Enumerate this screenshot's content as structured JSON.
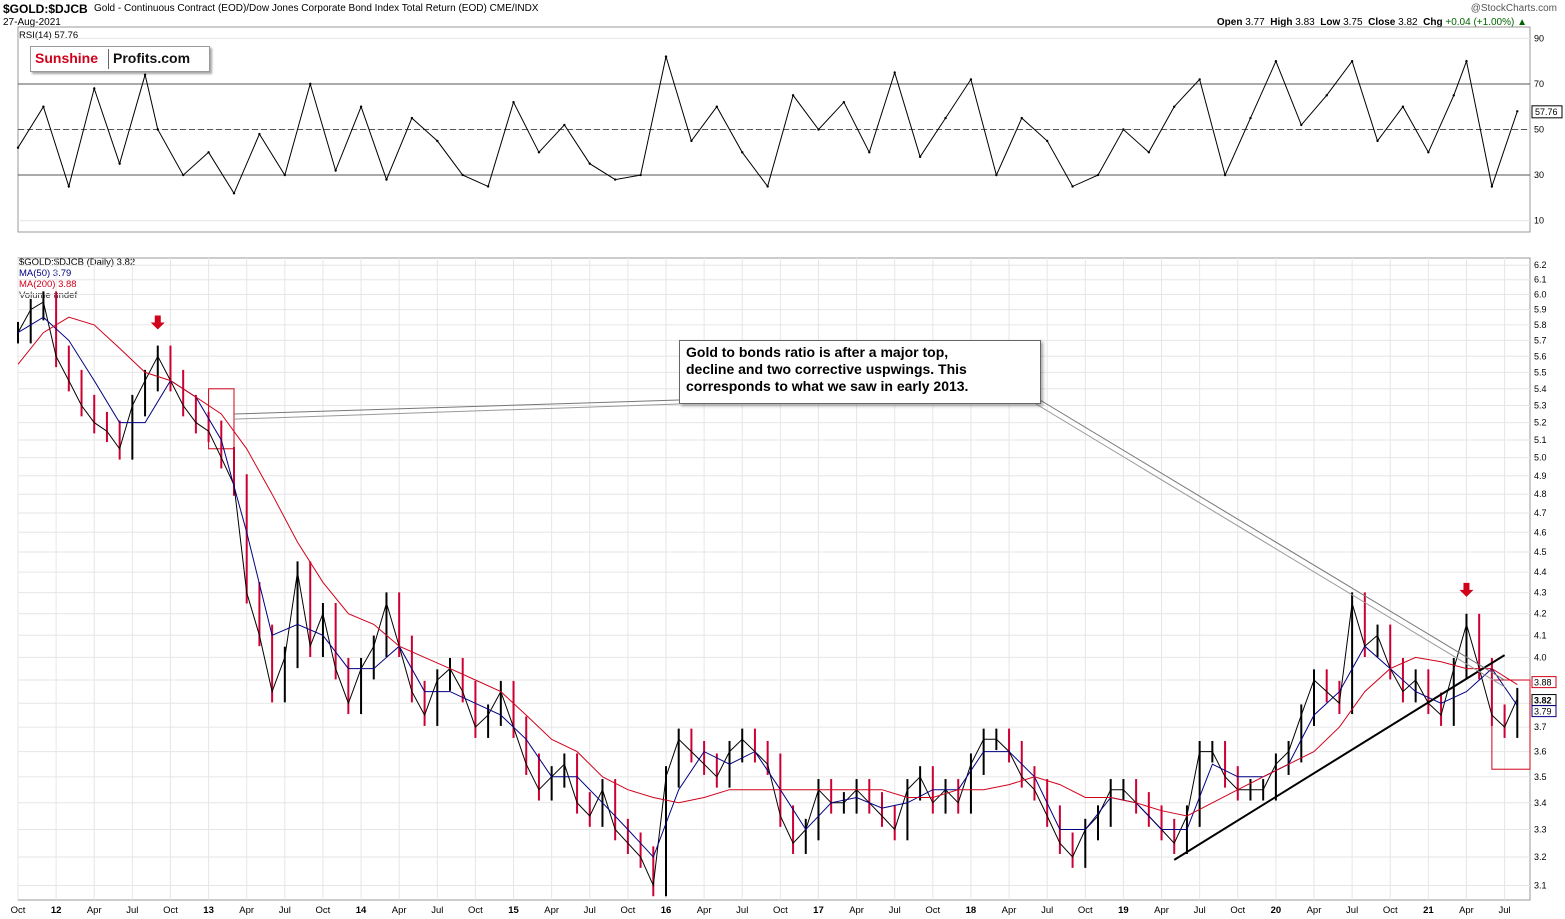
{
  "header": {
    "symbol": "$GOLD:$DJCB",
    "description": "Gold - Continuous Contract (EOD)/Dow Jones Corporate Bond Index Total Return (EOD)",
    "exchange": "CME/INDX",
    "date": "27-Aug-2021",
    "credit": "@StockCharts.com",
    "open_label": "Open",
    "open": "3.77",
    "high_label": "High",
    "high": "3.83",
    "low_label": "Low",
    "low": "3.75",
    "close_label": "Close",
    "close": "3.82",
    "chg_label": "Chg",
    "chg": "+0.04 (+1.00%)",
    "chg_arrow": "▲"
  },
  "logo": {
    "part1": "Sunshine",
    "part2": "Profits.com"
  },
  "annotation": {
    "lines": [
      "Gold to bonds ratio is after a major top,",
      "decline and two corrective uspwings. This",
      "corresponds to what we saw in early 2013."
    ]
  },
  "colors": {
    "price": "#000000",
    "down_bars": "#cc0033",
    "ma50": "#000080",
    "ma200": "#d0021b",
    "markers": "#d0021b",
    "grid": "#e6e6e6"
  },
  "chart_data": [
    {
      "type": "line",
      "panel": "RSI",
      "legend": "RSI(14) 57.76",
      "current_value": "57.76",
      "y_ticks": [
        10,
        30,
        50,
        70,
        90
      ],
      "ylim": [
        5,
        95
      ],
      "reference_lines": [
        30,
        50,
        70
      ],
      "x": [
        "2011-10",
        "2011-12",
        "2012-02",
        "2012-04",
        "2012-06",
        "2012-08",
        "2012-09",
        "2012-11",
        "2013-01",
        "2013-03",
        "2013-05",
        "2013-07",
        "2013-09",
        "2013-11",
        "2014-01",
        "2014-03",
        "2014-05",
        "2014-07",
        "2014-09",
        "2014-11",
        "2015-01",
        "2015-03",
        "2015-05",
        "2015-07",
        "2015-09",
        "2015-11",
        "2016-01",
        "2016-03",
        "2016-05",
        "2016-07",
        "2016-09",
        "2016-11",
        "2017-01",
        "2017-03",
        "2017-05",
        "2017-07",
        "2017-09",
        "2017-11",
        "2018-01",
        "2018-03",
        "2018-05",
        "2018-07",
        "2018-09",
        "2018-11",
        "2019-01",
        "2019-03",
        "2019-05",
        "2019-07",
        "2019-09",
        "2019-11",
        "2020-01",
        "2020-03",
        "2020-05",
        "2020-07",
        "2020-09",
        "2020-11",
        "2021-01",
        "2021-03",
        "2021-04",
        "2021-06",
        "2021-08"
      ],
      "values": [
        42,
        60,
        25,
        68,
        35,
        74,
        50,
        30,
        40,
        22,
        48,
        30,
        70,
        32,
        60,
        28,
        55,
        45,
        30,
        25,
        62,
        40,
        52,
        35,
        28,
        30,
        82,
        45,
        60,
        40,
        25,
        65,
        50,
        62,
        40,
        75,
        38,
        55,
        72,
        30,
        55,
        45,
        25,
        30,
        50,
        40,
        60,
        72,
        30,
        55,
        80,
        52,
        65,
        80,
        45,
        60,
        40,
        65,
        80,
        25,
        58
      ]
    },
    {
      "type": "line",
      "panel": "Price",
      "legend_title": "$GOLD:$DJCB (Daily) 3.82",
      "series": [
        {
          "name": "$GOLD:$DJCB",
          "x": [
            "2011-10",
            "2011-11",
            "2011-12",
            "2012-01",
            "2012-02",
            "2012-03",
            "2012-04",
            "2012-05",
            "2012-06",
            "2012-07",
            "2012-08",
            "2012-09",
            "2012-10",
            "2012-11",
            "2012-12",
            "2013-01",
            "2013-02",
            "2013-03",
            "2013-04",
            "2013-05",
            "2013-06",
            "2013-07",
            "2013-08",
            "2013-09",
            "2013-10",
            "2013-11",
            "2013-12",
            "2014-01",
            "2014-02",
            "2014-03",
            "2014-04",
            "2014-05",
            "2014-06",
            "2014-07",
            "2014-08",
            "2014-09",
            "2014-10",
            "2014-11",
            "2014-12",
            "2015-01",
            "2015-02",
            "2015-03",
            "2015-04",
            "2015-05",
            "2015-06",
            "2015-07",
            "2015-08",
            "2015-09",
            "2015-10",
            "2015-11",
            "2015-12",
            "2016-01",
            "2016-02",
            "2016-03",
            "2016-04",
            "2016-05",
            "2016-06",
            "2016-07",
            "2016-08",
            "2016-09",
            "2016-10",
            "2016-11",
            "2016-12",
            "2017-01",
            "2017-02",
            "2017-03",
            "2017-04",
            "2017-05",
            "2017-06",
            "2017-07",
            "2017-08",
            "2017-09",
            "2017-10",
            "2017-11",
            "2017-12",
            "2018-01",
            "2018-02",
            "2018-03",
            "2018-04",
            "2018-05",
            "2018-06",
            "2018-07",
            "2018-08",
            "2018-09",
            "2018-10",
            "2018-11",
            "2018-12",
            "2019-01",
            "2019-02",
            "2019-03",
            "2019-04",
            "2019-05",
            "2019-06",
            "2019-07",
            "2019-08",
            "2019-09",
            "2019-10",
            "2019-11",
            "2019-12",
            "2020-01",
            "2020-02",
            "2020-03",
            "2020-04",
            "2020-05",
            "2020-06",
            "2020-07",
            "2020-08",
            "2020-09",
            "2020-10",
            "2020-11",
            "2020-12",
            "2021-01",
            "2021-02",
            "2021-03",
            "2021-04",
            "2021-05",
            "2021-06",
            "2021-07",
            "2021-08"
          ],
          "values": [
            5.75,
            5.9,
            5.95,
            5.6,
            5.45,
            5.3,
            5.2,
            5.15,
            5.05,
            5.3,
            5.45,
            5.6,
            5.45,
            5.3,
            5.2,
            5.15,
            5.0,
            4.85,
            4.3,
            4.1,
            3.85,
            4.0,
            4.4,
            4.05,
            4.2,
            3.95,
            3.8,
            3.95,
            4.05,
            4.25,
            4.05,
            3.85,
            3.75,
            3.9,
            3.95,
            3.85,
            3.7,
            3.75,
            3.85,
            3.7,
            3.55,
            3.45,
            3.5,
            3.55,
            3.4,
            3.35,
            3.45,
            3.3,
            3.25,
            3.2,
            3.1,
            3.5,
            3.65,
            3.6,
            3.55,
            3.5,
            3.6,
            3.65,
            3.6,
            3.55,
            3.35,
            3.25,
            3.3,
            3.45,
            3.4,
            3.4,
            3.45,
            3.4,
            3.35,
            3.3,
            3.45,
            3.5,
            3.4,
            3.45,
            3.4,
            3.55,
            3.65,
            3.65,
            3.6,
            3.5,
            3.45,
            3.35,
            3.25,
            3.2,
            3.3,
            3.35,
            3.45,
            3.45,
            3.4,
            3.35,
            3.3,
            3.25,
            3.35,
            3.6,
            3.6,
            3.5,
            3.45,
            3.45,
            3.45,
            3.55,
            3.6,
            3.75,
            3.9,
            3.85,
            3.8,
            4.25,
            4.05,
            4.1,
            3.95,
            3.85,
            3.9,
            3.8,
            3.75,
            3.95,
            4.15,
            3.95,
            3.75,
            3.7,
            3.82
          ]
        },
        {
          "name": "MA(50) 3.79",
          "x": [
            "2011-10",
            "2011-12",
            "2012-02",
            "2012-04",
            "2012-06",
            "2012-08",
            "2012-10",
            "2012-12",
            "2013-02",
            "2013-04",
            "2013-06",
            "2013-08",
            "2013-10",
            "2013-12",
            "2014-02",
            "2014-04",
            "2014-06",
            "2014-08",
            "2014-10",
            "2014-12",
            "2015-02",
            "2015-04",
            "2015-06",
            "2015-08",
            "2015-10",
            "2015-12",
            "2016-02",
            "2016-04",
            "2016-06",
            "2016-08",
            "2016-10",
            "2016-12",
            "2017-02",
            "2017-04",
            "2017-06",
            "2017-08",
            "2017-10",
            "2017-12",
            "2018-02",
            "2018-04",
            "2018-06",
            "2018-08",
            "2018-10",
            "2018-12",
            "2019-02",
            "2019-04",
            "2019-06",
            "2019-08",
            "2019-10",
            "2019-12",
            "2020-02",
            "2020-04",
            "2020-06",
            "2020-08",
            "2020-10",
            "2020-12",
            "2021-02",
            "2021-04",
            "2021-06",
            "2021-08"
          ],
          "values": [
            5.75,
            5.85,
            5.7,
            5.45,
            5.2,
            5.2,
            5.45,
            5.35,
            5.1,
            4.6,
            4.1,
            4.15,
            4.1,
            3.95,
            3.95,
            4.05,
            3.85,
            3.85,
            3.8,
            3.75,
            3.65,
            3.5,
            3.5,
            3.4,
            3.3,
            3.2,
            3.45,
            3.6,
            3.55,
            3.6,
            3.45,
            3.3,
            3.4,
            3.42,
            3.38,
            3.4,
            3.45,
            3.45,
            3.6,
            3.6,
            3.5,
            3.3,
            3.3,
            3.42,
            3.4,
            3.3,
            3.3,
            3.55,
            3.5,
            3.5,
            3.55,
            3.75,
            3.85,
            4.05,
            3.95,
            3.85,
            3.8,
            3.85,
            3.95,
            3.79
          ]
        },
        {
          "name": "MA(200) 3.88",
          "x": [
            "2011-10",
            "2011-12",
            "2012-02",
            "2012-04",
            "2012-06",
            "2012-08",
            "2012-10",
            "2012-12",
            "2013-02",
            "2013-04",
            "2013-06",
            "2013-08",
            "2013-10",
            "2013-12",
            "2014-02",
            "2014-04",
            "2014-06",
            "2014-08",
            "2014-10",
            "2014-12",
            "2015-02",
            "2015-04",
            "2015-06",
            "2015-08",
            "2015-10",
            "2015-12",
            "2016-02",
            "2016-04",
            "2016-06",
            "2016-08",
            "2016-10",
            "2016-12",
            "2017-02",
            "2017-04",
            "2017-06",
            "2017-08",
            "2017-10",
            "2017-12",
            "2018-02",
            "2018-04",
            "2018-06",
            "2018-08",
            "2018-10",
            "2018-12",
            "2019-02",
            "2019-04",
            "2019-06",
            "2019-08",
            "2019-10",
            "2019-12",
            "2020-02",
            "2020-04",
            "2020-06",
            "2020-08",
            "2020-10",
            "2020-12",
            "2021-02",
            "2021-04",
            "2021-06",
            "2021-08"
          ],
          "values": [
            5.55,
            5.75,
            5.85,
            5.8,
            5.65,
            5.5,
            5.45,
            5.35,
            5.25,
            5.05,
            4.8,
            4.55,
            4.35,
            4.2,
            4.15,
            4.05,
            4.0,
            3.95,
            3.9,
            3.85,
            3.75,
            3.65,
            3.6,
            3.5,
            3.45,
            3.42,
            3.4,
            3.42,
            3.45,
            3.45,
            3.45,
            3.45,
            3.45,
            3.45,
            3.45,
            3.42,
            3.42,
            3.45,
            3.45,
            3.47,
            3.5,
            3.47,
            3.42,
            3.42,
            3.4,
            3.37,
            3.35,
            3.4,
            3.45,
            3.5,
            3.55,
            3.6,
            3.7,
            3.85,
            3.95,
            4.0,
            3.98,
            3.95,
            3.95,
            3.88
          ]
        }
      ],
      "legend_entries": [
        "MA(50) 3.79",
        "MA(200) 3.88",
        "Volume undef"
      ],
      "right_labels": [
        "3.88",
        "3.82",
        "3.79"
      ],
      "y_ticks": [
        3.1,
        3.2,
        3.3,
        3.4,
        3.5,
        3.6,
        3.7,
        3.8,
        3.9,
        4.0,
        4.1,
        4.2,
        4.3,
        4.4,
        4.5,
        4.6,
        4.7,
        4.8,
        4.9,
        5.0,
        5.1,
        5.2,
        5.3,
        5.4,
        5.5,
        5.6,
        5.7,
        5.8,
        5.9,
        6.0,
        6.1,
        6.2
      ],
      "ylim": [
        3.05,
        6.25
      ],
      "y_scale": "log",
      "x_tick_labels": [
        "Oct",
        "12",
        "Apr",
        "Jul",
        "Oct",
        "13",
        "Apr",
        "Jul",
        "Oct",
        "14",
        "Apr",
        "Jul",
        "Oct",
        "15",
        "Apr",
        "Jul",
        "Oct",
        "16",
        "Apr",
        "Jul",
        "Oct",
        "17",
        "Apr",
        "Jul",
        "Oct",
        "18",
        "Apr",
        "Jul",
        "Oct",
        "19",
        "Apr",
        "Jul",
        "Oct",
        "20",
        "Apr",
        "Jul",
        "Oct",
        "21",
        "Apr",
        "Jul"
      ],
      "x_tick_dates": [
        "2011-10",
        "2012-01",
        "2012-04",
        "2012-07",
        "2012-10",
        "2013-01",
        "2013-04",
        "2013-07",
        "2013-10",
        "2014-01",
        "2014-04",
        "2014-07",
        "2014-10",
        "2015-01",
        "2015-04",
        "2015-07",
        "2015-10",
        "2016-01",
        "2016-04",
        "2016-07",
        "2016-10",
        "2017-01",
        "2017-04",
        "2017-07",
        "2017-10",
        "2018-01",
        "2018-04",
        "2018-07",
        "2018-10",
        "2019-01",
        "2019-04",
        "2019-07",
        "2019-10",
        "2020-01",
        "2020-04",
        "2020-07",
        "2020-10",
        "2021-01",
        "2021-04",
        "2021-07"
      ],
      "x_start": "2011-10",
      "x_end": "2021-09",
      "trendline": {
        "from": [
          "2019-05",
          3.19
        ],
        "to": [
          "2021-07",
          4.01
        ]
      },
      "arrows": [
        {
          "date": "2012-09",
          "value": 5.77
        },
        {
          "date": "2021-04",
          "value": 4.28
        }
      ],
      "highlight_boxes": [
        {
          "x0": "2013-01",
          "x1": "2013-03",
          "y0": 5.05,
          "y1": 5.4
        },
        {
          "x0": "2021-06",
          "x1": "2021-09",
          "y0": 3.53,
          "y1": 3.9
        }
      ],
      "grid": true
    }
  ]
}
